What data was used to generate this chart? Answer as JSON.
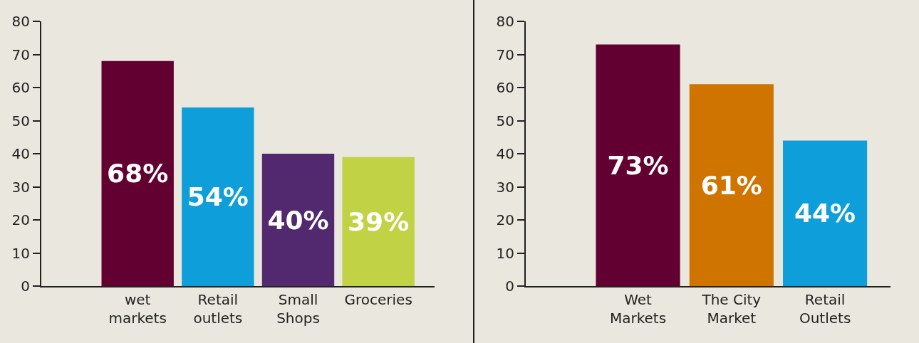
{
  "chart_data": [
    {
      "type": "bar",
      "categories": [
        "wet markets",
        "Retail outlets",
        "Small Shops",
        "Groceries"
      ],
      "values": [
        68,
        54,
        40,
        39
      ],
      "colors": [
        "#620032",
        "#0e9fdb",
        "#52296e",
        "#c1d244"
      ],
      "value_labels": [
        "68%",
        "54%",
        "40%",
        "39%"
      ],
      "ylim": [
        0,
        80
      ],
      "yticks": [
        0,
        10,
        20,
        30,
        40,
        50,
        60,
        70,
        80
      ],
      "grid": false
    },
    {
      "type": "bar",
      "categories": [
        "Wet Markets",
        "The City Market",
        "Retail Outlets"
      ],
      "values": [
        73,
        61,
        44
      ],
      "colors": [
        "#620032",
        "#d07400",
        "#0e9fdb"
      ],
      "value_labels": [
        "73%",
        "61%",
        "44%"
      ],
      "ylim": [
        0,
        80
      ],
      "yticks": [
        0,
        10,
        20,
        30,
        40,
        50,
        60,
        70,
        80
      ],
      "grid": false
    }
  ]
}
